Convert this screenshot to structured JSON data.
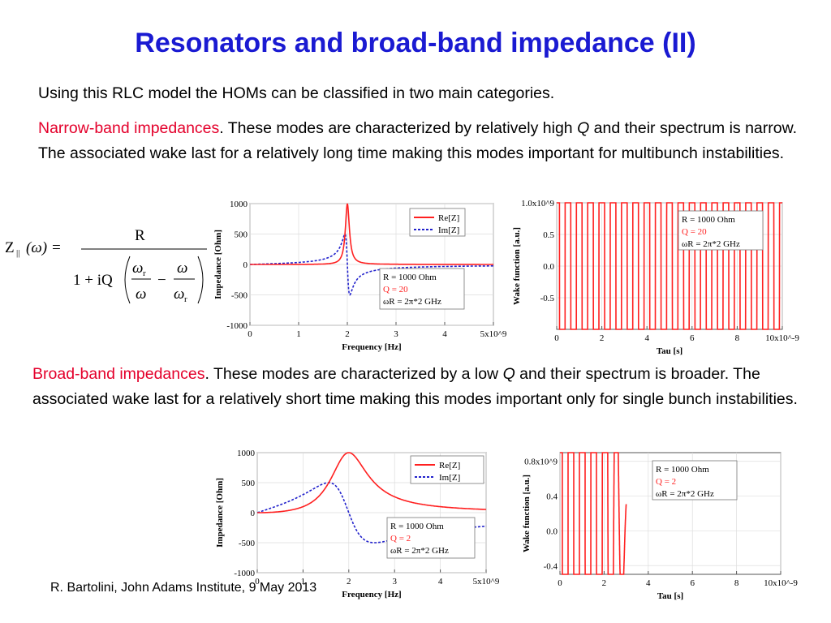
{
  "slide": {
    "title": "Resonators and broad-band impedance (II)",
    "intro": "Using this RLC model the HOMs can be classified in two main categories.",
    "narrow": {
      "label": "Narrow-band impedances",
      "text_a": ". These modes are characterized by relatively high ",
      "q": "Q",
      "text_b": " and their spectrum is narrow. The associated wake last for a relatively long time making this modes important for multibunch instabilities."
    },
    "broad": {
      "label": "Broad-band impedances",
      "text_a": ". These modes are characterized by a low ",
      "q": "Q",
      "text_b": " and their spectrum is broader. The associated wake last for a relatively short time making this modes important only for single bunch instabilities."
    },
    "footer": "R. Bartolini, John Adams Institute, 9 May 2013"
  },
  "formula": {
    "lhs": "Z",
    "sub": "||",
    "arg": "(ω) =",
    "numerator": "R",
    "one_plus": "1 + iQ",
    "wr": "ω",
    "r_sub": "r",
    "w": "ω",
    "minus": "−"
  },
  "colors": {
    "title": "#1a1ad2",
    "accent_red": "#e4002b",
    "re_line": "#ff2020",
    "im_line": "#2222cc"
  },
  "chart_data": [
    {
      "type": "line",
      "xlabel": "Frequency [Hz]",
      "ylabel": "Impedance [Ohm]",
      "xlim": [
        0,
        5000000000.0
      ],
      "ylim": [
        -1000,
        1000
      ],
      "xticks": [
        "0",
        "1",
        "2",
        "3",
        "4",
        "5x10^9"
      ],
      "yticks": [
        "1000",
        "500",
        "0",
        "-500",
        "-1000"
      ],
      "legend": [
        "Re[Z]",
        "Im[Z]"
      ],
      "params": [
        "R = 1000 Ohm",
        "Q = 20",
        "ωR = 2π*2 GHz"
      ],
      "R": 1000,
      "Q": 20,
      "fr": 2000000000.0
    },
    {
      "type": "line",
      "xlabel": "Tau [s]",
      "ylabel": "Wake function [a.u.]",
      "xlim": [
        0,
        1e-08
      ],
      "ylim": [
        -1000000000.0,
        1000000000.0
      ],
      "xticks": [
        "0",
        "2",
        "4",
        "6",
        "8",
        "10x10^-9"
      ],
      "yticks": [
        "1.0x10^9",
        "0.5",
        "0.0",
        "-0.5"
      ],
      "params": [
        "R = 1000 Ohm",
        "Q = 20",
        "ωR = 2π*2 GHz"
      ],
      "R": 1000,
      "Q": 20,
      "fr": 2000000000.0
    },
    {
      "type": "line",
      "xlabel": "Frequency [Hz]",
      "ylabel": "Impedance [Ohm]",
      "xlim": [
        0,
        5000000000.0
      ],
      "ylim": [
        -1000,
        1000
      ],
      "xticks": [
        "0",
        "1",
        "2",
        "3",
        "4",
        "5x10^9"
      ],
      "yticks": [
        "1000",
        "500",
        "0",
        "-500",
        "-1000"
      ],
      "legend": [
        "Re[Z]",
        "Im[Z]"
      ],
      "params": [
        "R = 1000 Ohm",
        "Q = 2",
        "ωR = 2π*2 GHz"
      ],
      "R": 1000,
      "Q": 2,
      "fr": 2000000000.0
    },
    {
      "type": "line",
      "xlabel": "Tau [s]",
      "ylabel": "Wake function [a.u.]",
      "xlim": [
        0,
        1e-08
      ],
      "ylim": [
        -500000000.0,
        900000000.0
      ],
      "xticks": [
        "0",
        "2",
        "4",
        "6",
        "8",
        "10x10^-9"
      ],
      "yticks": [
        "0.8x10^9",
        "0.4",
        "0.0",
        "-0.4"
      ],
      "params": [
        "R = 1000 Ohm",
        "Q = 2",
        "ωR = 2π*2 GHz"
      ],
      "R": 1000,
      "Q": 2,
      "fr": 2000000000.0
    }
  ]
}
